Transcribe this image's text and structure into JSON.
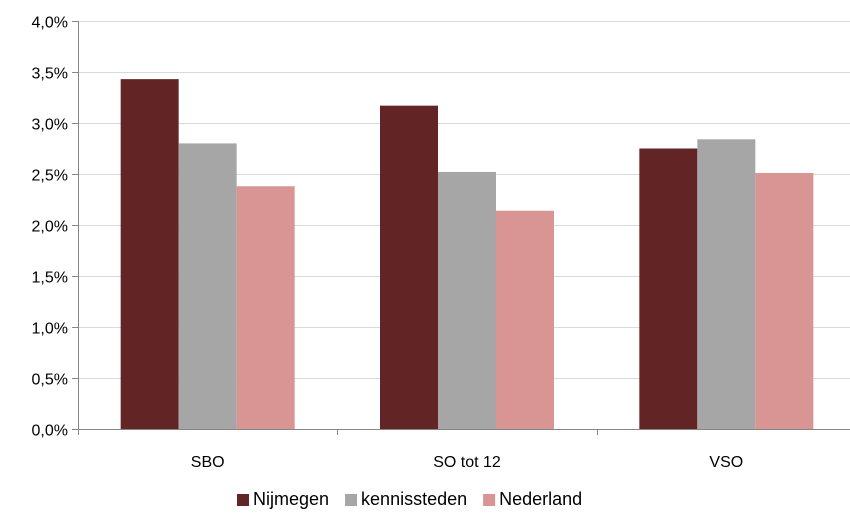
{
  "chart_data": {
    "type": "bar",
    "categories": [
      "SBO",
      "SO tot 12",
      "VSO"
    ],
    "series": [
      {
        "name": "Nijmegen",
        "color": "#632425",
        "values": [
          3.43,
          3.17,
          2.75
        ]
      },
      {
        "name": "kennissteden",
        "color": "#a6a6a6",
        "values": [
          2.8,
          2.52,
          2.84
        ]
      },
      {
        "name": "Nederland",
        "color": "#d99594",
        "values": [
          2.38,
          2.14,
          2.51
        ]
      }
    ],
    "ylim": [
      0,
      4.0
    ],
    "yticks": [
      "0,0%",
      "0,5%",
      "1,0%",
      "1,5%",
      "2,0%",
      "2,5%",
      "3,0%",
      "3,5%",
      "4,0%"
    ],
    "grid": "horizontal",
    "legend_position": "bottom"
  }
}
